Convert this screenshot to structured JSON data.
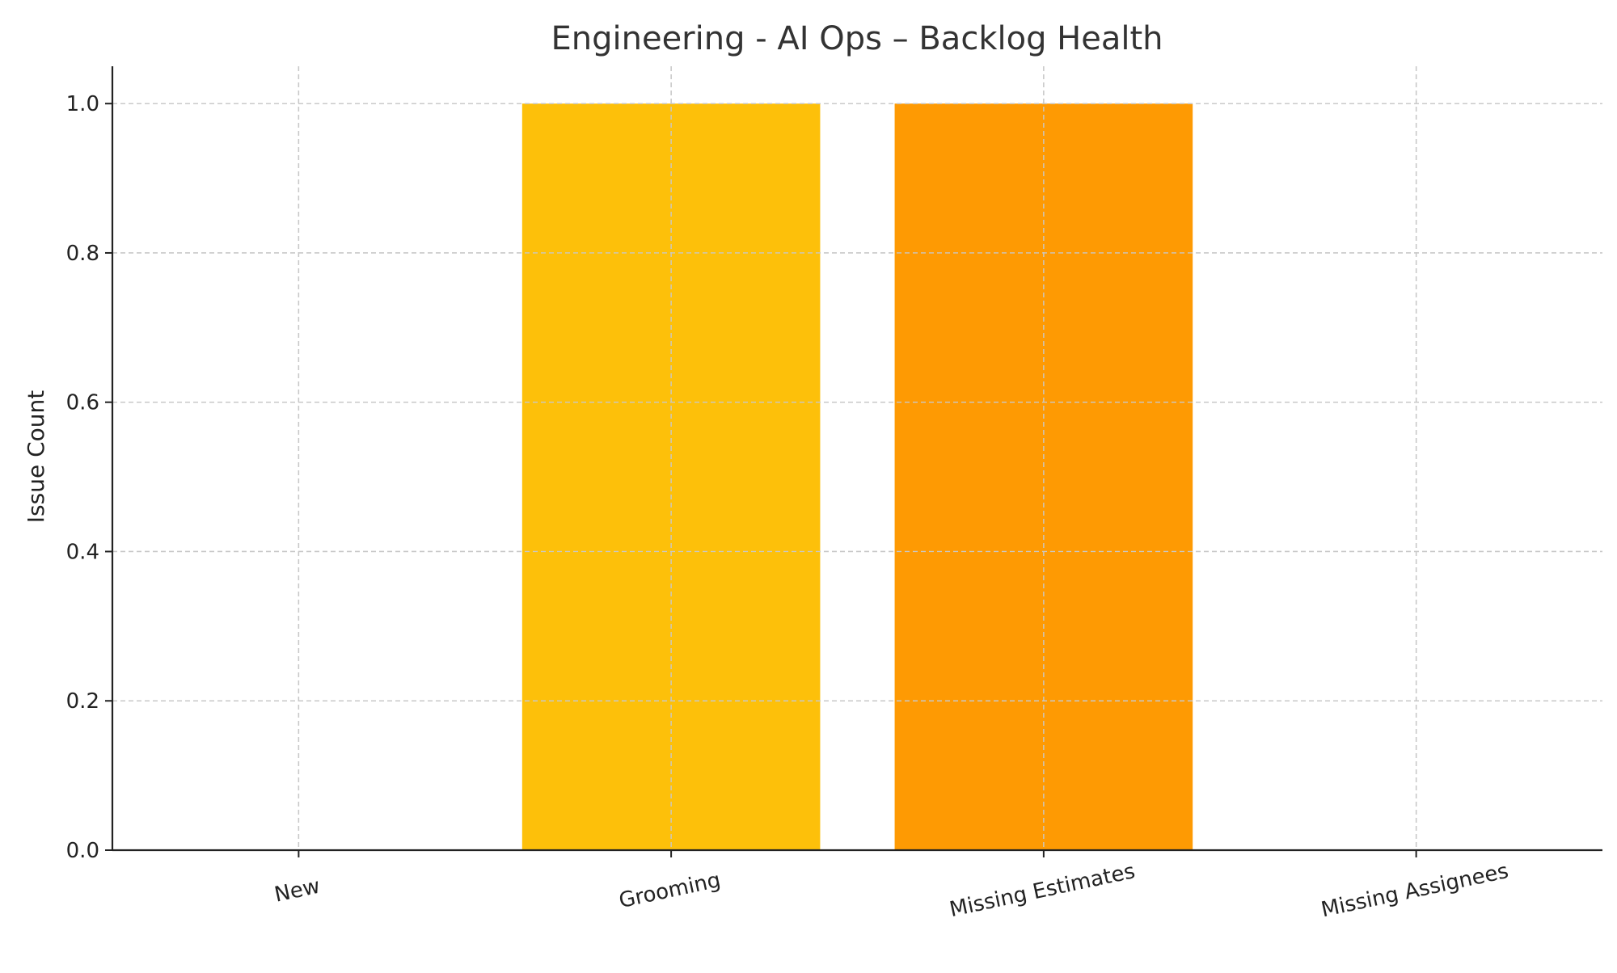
{
  "chart_data": {
    "type": "bar",
    "title": "Engineering - AI Ops – Backlog Health",
    "xlabel": "",
    "ylabel": "Issue Count",
    "categories": [
      "New",
      "Grooming",
      "Missing Estimates",
      "Missing Assignees"
    ],
    "values": [
      0,
      1,
      1,
      0
    ],
    "colors": [
      "#4c8fd6",
      "#fdc00a",
      "#fe9a03",
      "#e4572e"
    ],
    "ylim": [
      0,
      1.05
    ],
    "yticks": [
      "0.0",
      "0.2",
      "0.4",
      "0.6",
      "0.8",
      "1.0"
    ],
    "grid": true,
    "legend": "none"
  }
}
